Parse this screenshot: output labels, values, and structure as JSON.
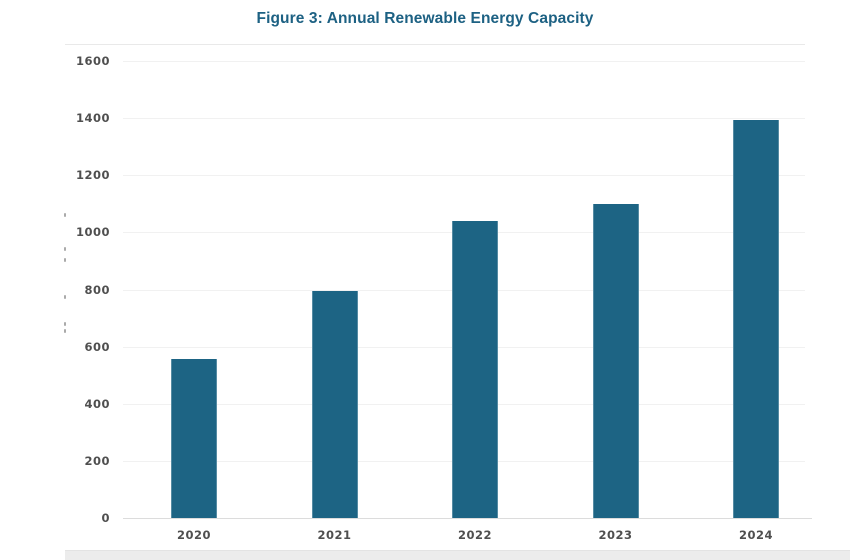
{
  "figure": {
    "title": "Figure 3: Annual Renewable Energy Capacity"
  },
  "chart_data": {
    "type": "bar",
    "title": "Figure 3: Annual Renewable Energy Capacity",
    "categories": [
      "2020",
      "2021",
      "2022",
      "2023",
      "2024"
    ],
    "values": [
      555,
      795,
      1040,
      1100,
      1395
    ],
    "xlabel": "",
    "ylabel": "",
    "ylim": [
      0,
      1600
    ],
    "yticks": [
      0,
      200,
      400,
      600,
      800,
      1000,
      1200,
      1400,
      1600
    ],
    "grid": true,
    "legend_position": "none",
    "bar_color": "#1d6484",
    "title_color": "#1d6183",
    "axis_text_color": "#4f4f4f",
    "gridline_color": "#f1f1f1",
    "baseline_color": "#dcdcdc"
  }
}
